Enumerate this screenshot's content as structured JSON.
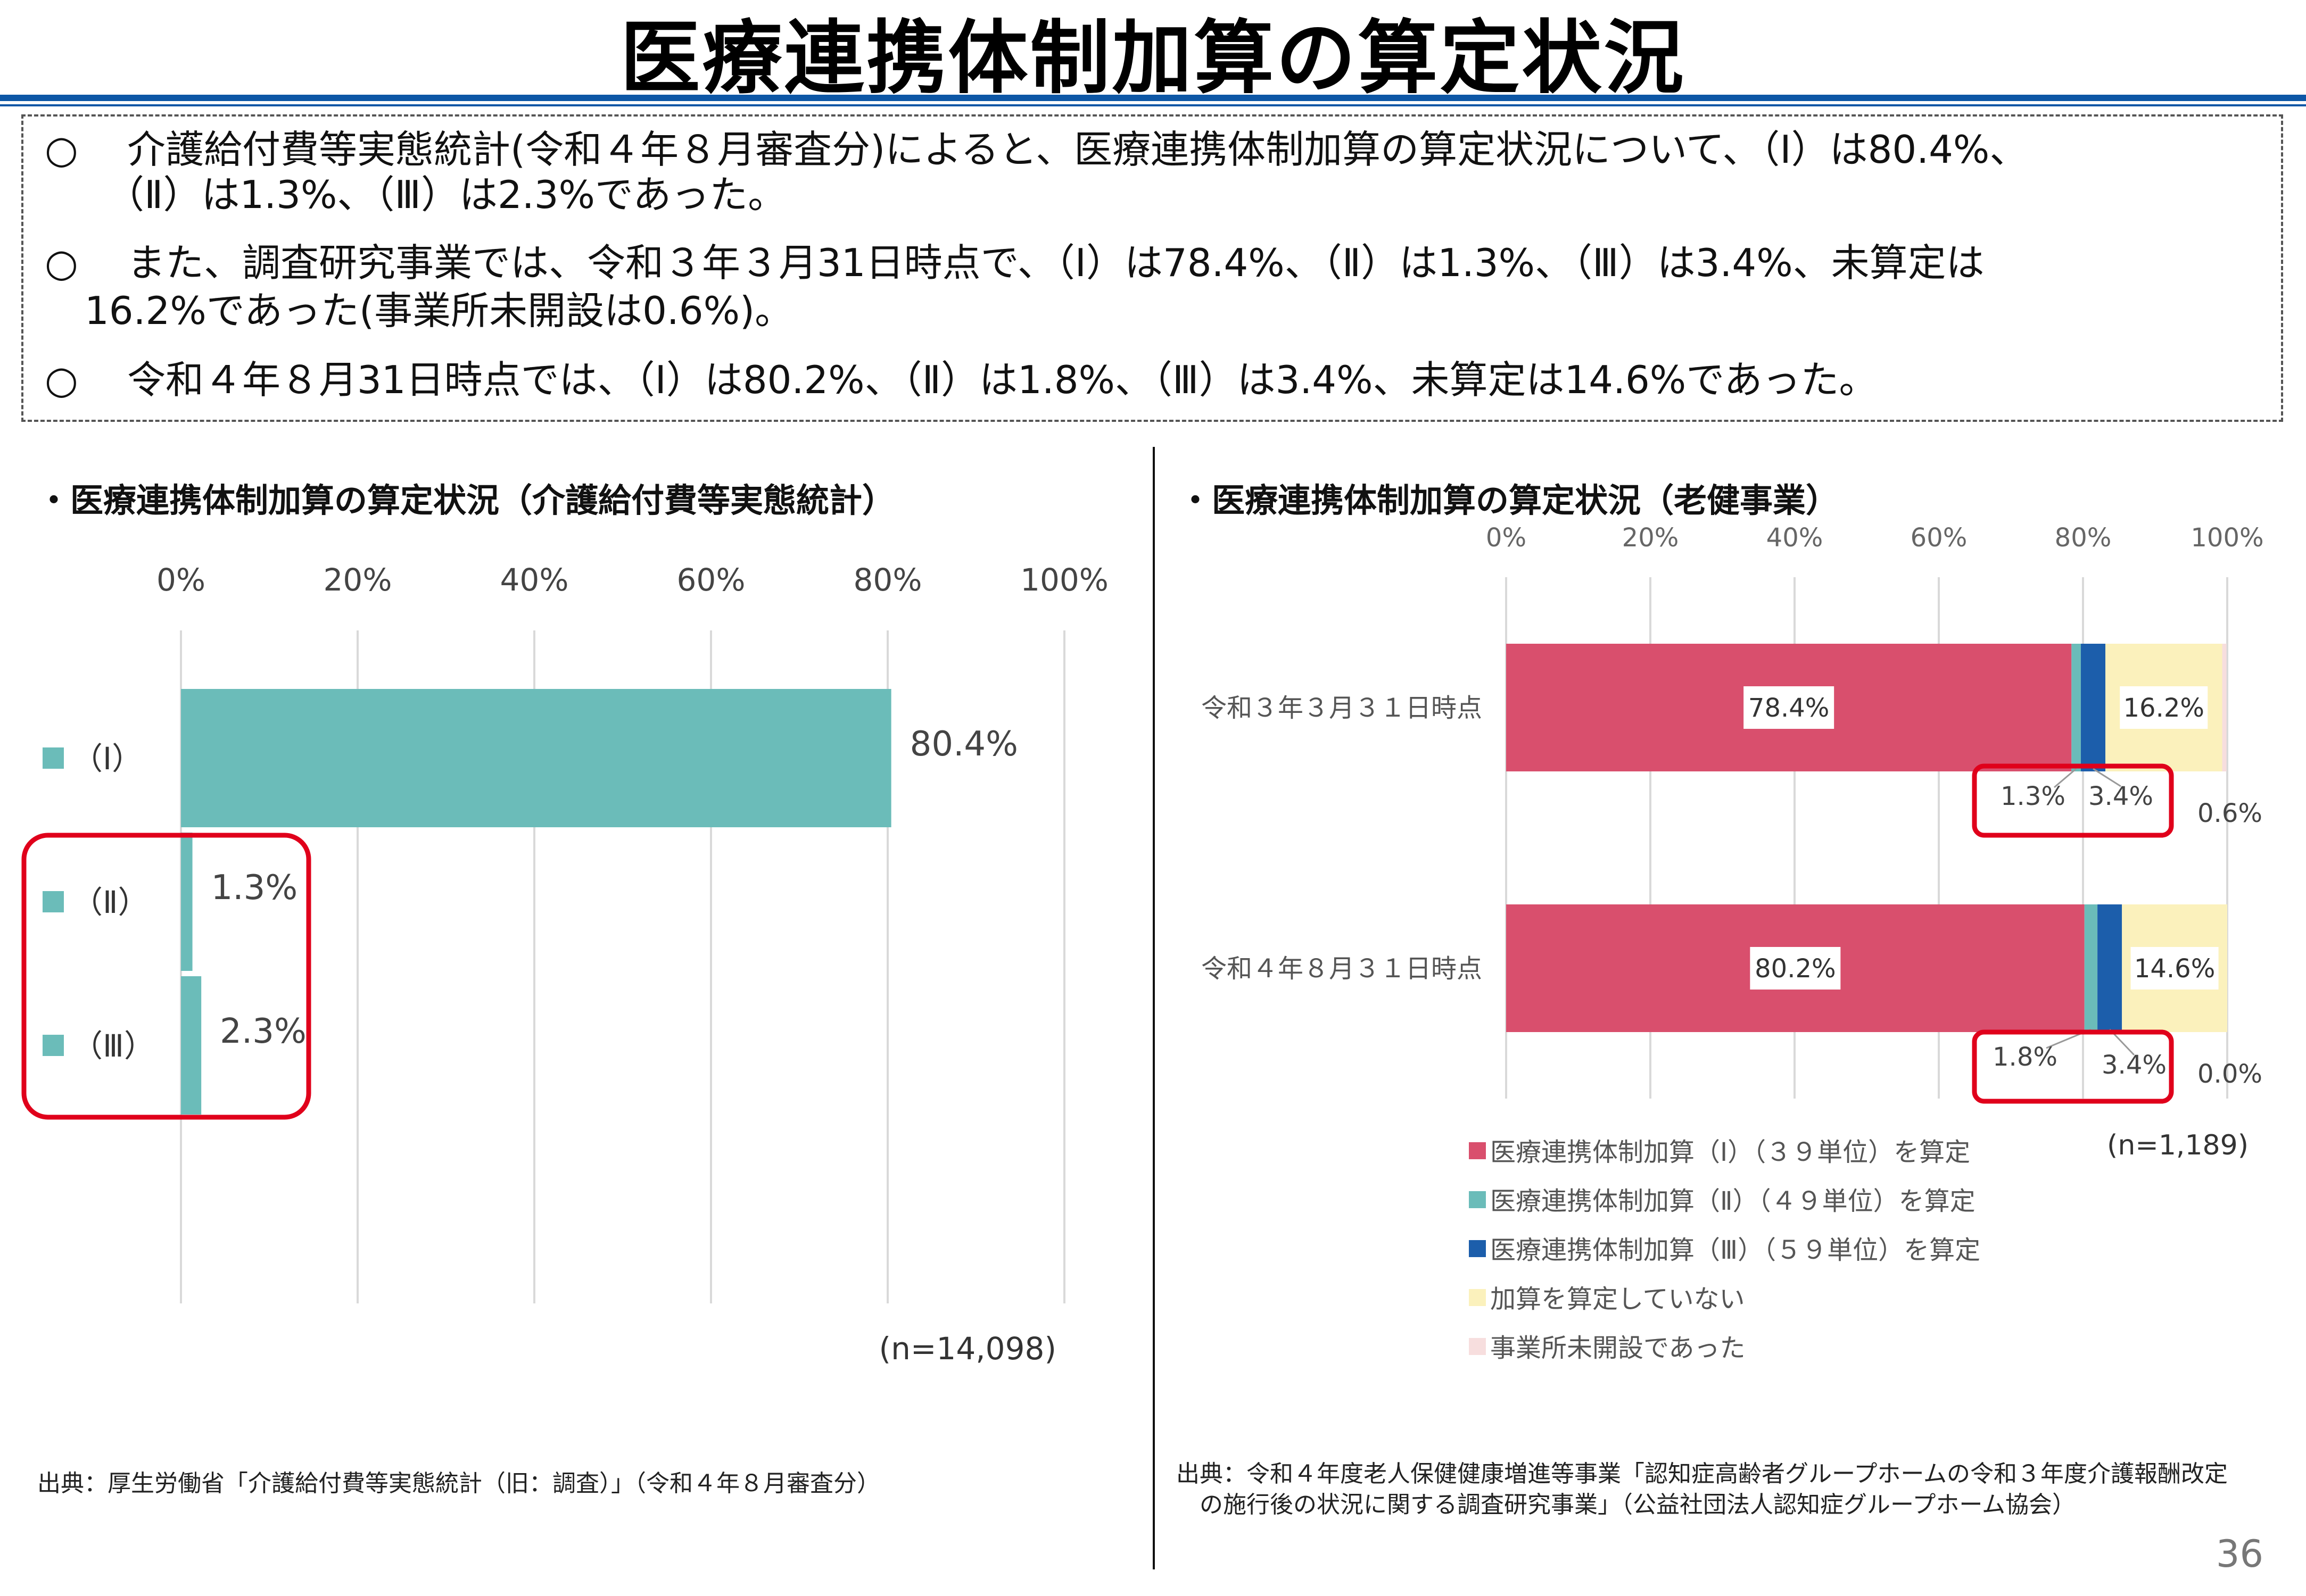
{
  "title": "医療連携体制加算の算定状況",
  "summary": {
    "bullet": "○",
    "lines": [
      "介護給付費等実態統計(令和４年８月審査分)によると、医療連携体制加算の算定状況について、（Ⅰ）は80.4%、",
      "（Ⅱ）は1.3%、（Ⅲ）は2.3%であった。",
      "また、調査研究事業では、令和３年３月31日時点で、（Ⅰ）は78.4%、（Ⅱ）は1.3%、（Ⅲ）は3.4%、未算定は",
      "16.2%であった(事業所未開設は0.6%)。",
      "令和４年８月31日時点では、（Ⅰ）は80.2%、（Ⅱ）は1.8%、（Ⅲ）は3.4%、未算定は14.6%であった。"
    ]
  },
  "left_panel": {
    "heading": "・医療連携体制加算の算定状況（介護給付費等実態統計）",
    "source": "出典：厚生労働省「介護給付費等実態統計（旧：調査）」（令和４年８月審査分）"
  },
  "right_panel": {
    "heading": "・医療連携体制加算の算定状況（老健事業）",
    "source_lines": [
      "出典：令和４年度老人保健健康増進等事業「認知症高齢者グループホームの令和３年度介護報酬改定",
      "　の施行後の状況に関する調査研究事業」（公益社団法人認知症グループホーム協会）"
    ]
  },
  "chart_data": [
    {
      "type": "bar",
      "orientation": "horizontal",
      "categories": [
        "（Ⅰ）",
        "（Ⅱ）",
        "（Ⅲ）"
      ],
      "values": [
        80.4,
        1.3,
        2.3
      ],
      "value_labels": [
        "80.4%",
        "1.3%",
        "2.3%"
      ],
      "x_ticks": [
        "0%",
        "20%",
        "40%",
        "60%",
        "80%",
        "100%"
      ],
      "xlim": [
        0,
        100
      ],
      "grid": true,
      "color": "#6bbcb9",
      "highlight_categories": [
        "（Ⅱ）",
        "（Ⅲ）"
      ],
      "n_label": "(n=14,098)"
    },
    {
      "type": "bar",
      "orientation": "horizontal",
      "stacked": true,
      "categories": [
        "令和３年３月３１日時点",
        "令和４年８月３１日時点"
      ],
      "series": [
        {
          "name": "医療連携体制加算（Ⅰ）（３９単位）を算定",
          "values": [
            78.4,
            80.2
          ],
          "labels": [
            "78.4%",
            "80.2%"
          ],
          "color": "#d94f6d"
        },
        {
          "name": "医療連携体制加算（Ⅱ）（４９単位）を算定",
          "values": [
            1.3,
            1.8
          ],
          "labels": [
            "1.3%",
            "1.8%"
          ],
          "color": "#6bbcb9"
        },
        {
          "name": "医療連携体制加算（Ⅲ）（５９単位）を算定",
          "values": [
            3.4,
            3.4
          ],
          "labels": [
            "3.4%",
            "3.4%"
          ],
          "color": "#1c5eab"
        },
        {
          "name": "加算を算定していない",
          "values": [
            16.2,
            14.6
          ],
          "labels": [
            "16.2%",
            "14.6%"
          ],
          "color": "#fbf1bc"
        },
        {
          "name": "事業所未開設であった",
          "values": [
            0.6,
            0.0
          ],
          "labels": [
            "0.6%",
            "0.0%"
          ],
          "color": "#f7dede"
        }
      ],
      "x_ticks": [
        "0%",
        "20%",
        "40%",
        "60%",
        "80%",
        "100%"
      ],
      "xlim": [
        0,
        100
      ],
      "grid": true,
      "legend_position": "bottom",
      "n_label": "(n=1,189)"
    }
  ],
  "page_number": "36",
  "colors": {
    "accent_rule": "#0d57a6",
    "highlight_box": "#e0001b",
    "grid": "#d9d9d9"
  }
}
